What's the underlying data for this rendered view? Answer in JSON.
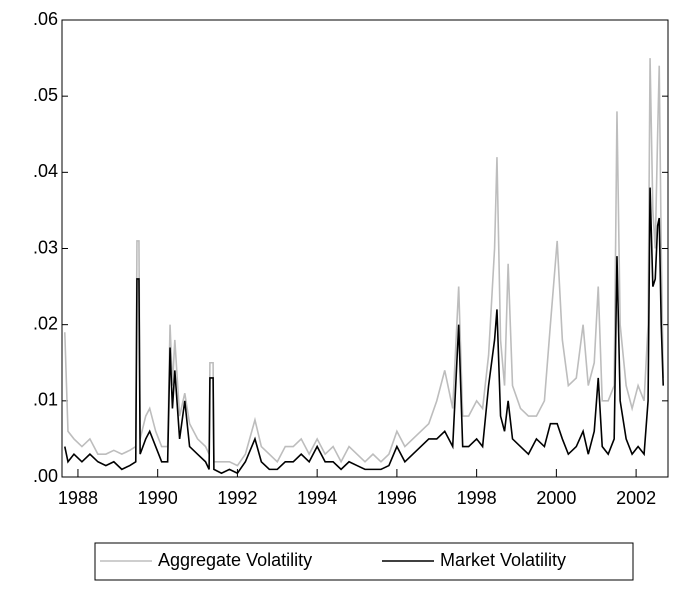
{
  "chart_data": {
    "type": "line",
    "x": [
      1987.67,
      1987.75,
      1987.9,
      1988.1,
      1988.3,
      1988.5,
      1988.7,
      1988.9,
      1989.1,
      1989.3,
      1989.45,
      1989.48,
      1989.53,
      1989.56,
      1989.7,
      1989.8,
      1989.95,
      1990.1,
      1990.25,
      1990.31,
      1990.37,
      1990.43,
      1990.55,
      1990.68,
      1990.8,
      1991.0,
      1991.2,
      1991.29,
      1991.31,
      1991.39,
      1991.41,
      1991.6,
      1991.8,
      1992.0,
      1992.2,
      1992.44,
      1992.6,
      1992.8,
      1993.0,
      1993.2,
      1993.4,
      1993.6,
      1993.8,
      1994.0,
      1994.2,
      1994.4,
      1994.6,
      1994.8,
      1995.0,
      1995.2,
      1995.4,
      1995.6,
      1995.8,
      1996.0,
      1996.2,
      1996.4,
      1996.6,
      1996.8,
      1997.0,
      1997.2,
      1997.4,
      1997.55,
      1997.65,
      1997.8,
      1998.0,
      1998.15,
      1998.3,
      1998.45,
      1998.51,
      1998.6,
      1998.7,
      1998.79,
      1998.9,
      1999.1,
      1999.3,
      1999.5,
      1999.7,
      1999.85,
      2000.02,
      2000.15,
      2000.3,
      2000.5,
      2000.67,
      2000.8,
      2000.95,
      2001.05,
      2001.15,
      2001.3,
      2001.45,
      2001.52,
      2001.6,
      2001.75,
      2001.9,
      2002.05,
      2002.2,
      2002.3,
      2002.35,
      2002.42,
      2002.48,
      2002.54,
      2002.58,
      2002.63,
      2002.68
    ],
    "series": [
      {
        "name": "Aggregate Volatility",
        "color": "#bdbdbd",
        "values": [
          0.019,
          0.006,
          0.005,
          0.004,
          0.005,
          0.003,
          0.003,
          0.0035,
          0.003,
          0.0035,
          0.004,
          0.031,
          0.031,
          0.005,
          0.008,
          0.009,
          0.006,
          0.004,
          0.004,
          0.02,
          0.012,
          0.018,
          0.008,
          0.011,
          0.007,
          0.005,
          0.004,
          0.003,
          0.015,
          0.015,
          0.002,
          0.002,
          0.002,
          0.0015,
          0.003,
          0.0075,
          0.004,
          0.003,
          0.002,
          0.004,
          0.004,
          0.005,
          0.003,
          0.005,
          0.003,
          0.004,
          0.002,
          0.004,
          0.003,
          0.002,
          0.003,
          0.002,
          0.003,
          0.006,
          0.004,
          0.005,
          0.006,
          0.007,
          0.01,
          0.014,
          0.009,
          0.025,
          0.008,
          0.008,
          0.01,
          0.009,
          0.016,
          0.03,
          0.042,
          0.018,
          0.012,
          0.028,
          0.012,
          0.009,
          0.008,
          0.008,
          0.01,
          0.02,
          0.031,
          0.018,
          0.012,
          0.013,
          0.02,
          0.012,
          0.015,
          0.025,
          0.01,
          0.01,
          0.012,
          0.048,
          0.02,
          0.012,
          0.009,
          0.012,
          0.01,
          0.02,
          0.055,
          0.035,
          0.03,
          0.045,
          0.054,
          0.03,
          0.013
        ]
      },
      {
        "name": "Market Volatility",
        "color": "#000000",
        "values": [
          0.004,
          0.002,
          0.003,
          0.002,
          0.003,
          0.002,
          0.0015,
          0.002,
          0.001,
          0.0015,
          0.002,
          0.026,
          0.026,
          0.003,
          0.005,
          0.006,
          0.004,
          0.002,
          0.002,
          0.017,
          0.009,
          0.014,
          0.005,
          0.01,
          0.004,
          0.003,
          0.002,
          0.001,
          0.013,
          0.013,
          0.001,
          0.0005,
          0.001,
          0.0005,
          0.002,
          0.005,
          0.002,
          0.001,
          0.001,
          0.002,
          0.002,
          0.003,
          0.002,
          0.004,
          0.002,
          0.002,
          0.001,
          0.002,
          0.0015,
          0.001,
          0.001,
          0.001,
          0.0015,
          0.004,
          0.002,
          0.003,
          0.004,
          0.005,
          0.005,
          0.006,
          0.004,
          0.02,
          0.004,
          0.004,
          0.005,
          0.004,
          0.012,
          0.018,
          0.022,
          0.008,
          0.006,
          0.01,
          0.005,
          0.004,
          0.003,
          0.005,
          0.004,
          0.007,
          0.007,
          0.005,
          0.003,
          0.004,
          0.006,
          0.003,
          0.006,
          0.013,
          0.004,
          0.003,
          0.005,
          0.029,
          0.01,
          0.005,
          0.003,
          0.004,
          0.003,
          0.01,
          0.038,
          0.025,
          0.026,
          0.033,
          0.034,
          0.02,
          0.012
        ]
      }
    ],
    "xlim": [
      1987.6,
      2002.8
    ],
    "xticks": [
      1988,
      1990,
      1992,
      1994,
      1996,
      1998,
      2000,
      2002
    ],
    "ylim": [
      0,
      0.06
    ],
    "yticks": [
      {
        "value": 0,
        "label": ".00"
      },
      {
        "value": 0.01,
        "label": ".01"
      },
      {
        "value": 0.02,
        "label": ".02"
      },
      {
        "value": 0.03,
        "label": ".03"
      },
      {
        "value": 0.04,
        "label": ".04"
      },
      {
        "value": 0.05,
        "label": ".05"
      },
      {
        "value": 0.06,
        "label": ".06"
      }
    ],
    "legend": "bottom"
  }
}
